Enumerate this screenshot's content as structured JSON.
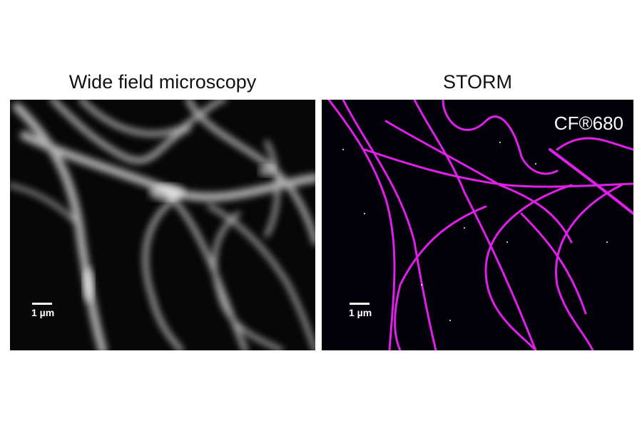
{
  "panels": [
    {
      "title": "Wide field microscopy",
      "scale_bar": "1 µm"
    },
    {
      "title": "STORM",
      "scale_bar": "1 µm",
      "dye_label": "CF®680"
    }
  ],
  "colors": {
    "widefield_filament": "#d8d8d8",
    "storm_filament": "#e020e8",
    "background": "#000000"
  }
}
